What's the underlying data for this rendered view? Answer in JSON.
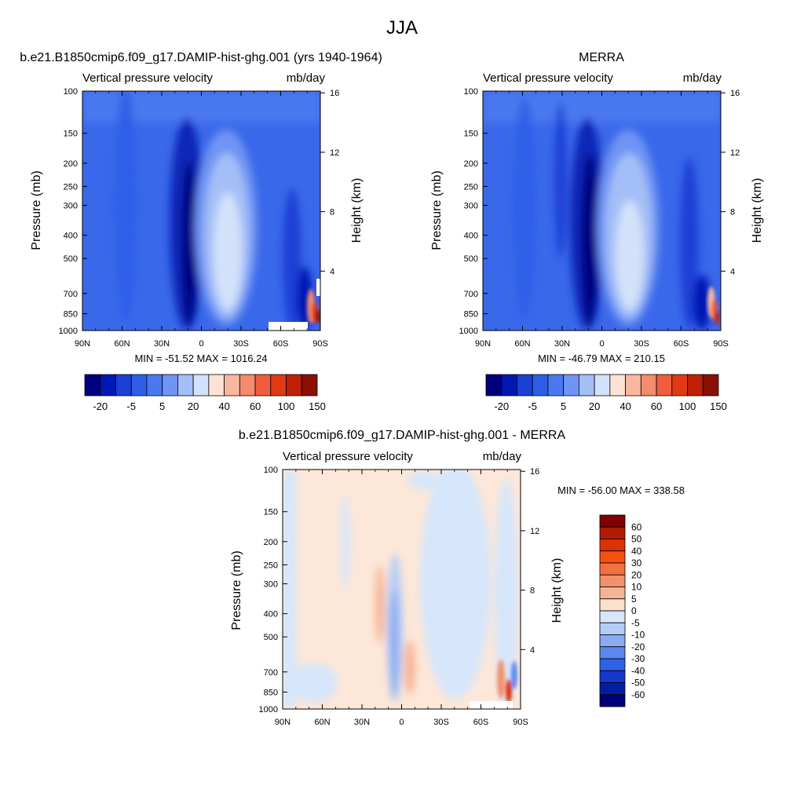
{
  "figure_title": "JJA",
  "chart_data": [
    {
      "type": "heatmap",
      "title": "b.e21.B1850cmip6.f09_g17.DAMIP-hist-ghg.001 (yrs 1940-1964)",
      "left_label": "Vertical pressure velocity",
      "right_label": "mb/day",
      "ylabel": "Pressure (mb)",
      "y2label": "Height (km)",
      "x_ticks": [
        "90N",
        "60N",
        "30N",
        "0",
        "30S",
        "60S",
        "90S"
      ],
      "y_ticks": [
        "100",
        "150",
        "200",
        "250",
        "300",
        "400",
        "500",
        "700",
        "850",
        "1000"
      ],
      "y_tick_values": [
        100,
        150,
        200,
        250,
        300,
        400,
        500,
        700,
        850,
        1000
      ],
      "y2_ticks": [
        "4",
        "8",
        "12",
        "16"
      ],
      "y2_tick_values": [
        4,
        8,
        12,
        16
      ],
      "ylim": [
        100,
        1000
      ],
      "y_scale": "log",
      "stats": "MIN = -51.52  MAX = 1016.24",
      "colorbar": {
        "orientation": "horizontal",
        "tick_labels": [
          "-20",
          "-5",
          "5",
          "20",
          "40",
          "60",
          "100",
          "150"
        ],
        "colors": [
          "#00007f",
          "#0018b4",
          "#1b40d6",
          "#2e5ee8",
          "#4a78f0",
          "#7094f4",
          "#a4bff7",
          "#d3e2fb",
          "#fde3d5",
          "#f8b8a0",
          "#f48a6e",
          "#ef5d3e",
          "#e23a14",
          "#bf2008",
          "#8a1005"
        ]
      }
    },
    {
      "type": "heatmap",
      "title": "MERRA",
      "left_label": "Vertical pressure velocity",
      "right_label": "mb/day",
      "ylabel": "Pressure (mb)",
      "y2label": "Height (km)",
      "x_ticks": [
        "90N",
        "60N",
        "30N",
        "0",
        "30S",
        "60S",
        "90S"
      ],
      "y_ticks": [
        "100",
        "150",
        "200",
        "250",
        "300",
        "400",
        "500",
        "700",
        "850",
        "1000"
      ],
      "y_tick_values": [
        100,
        150,
        200,
        250,
        300,
        400,
        500,
        700,
        850,
        1000
      ],
      "y2_ticks": [
        "4",
        "8",
        "12",
        "16"
      ],
      "y2_tick_values": [
        4,
        8,
        12,
        16
      ],
      "ylim": [
        100,
        1000
      ],
      "y_scale": "log",
      "stats": "MIN = -46.79  MAX = 210.15",
      "colorbar": {
        "orientation": "horizontal",
        "tick_labels": [
          "-20",
          "-5",
          "5",
          "20",
          "40",
          "60",
          "100",
          "150"
        ],
        "colors": [
          "#00007f",
          "#0018b4",
          "#1b40d6",
          "#2e5ee8",
          "#4a78f0",
          "#7094f4",
          "#a4bff7",
          "#d3e2fb",
          "#fde3d5",
          "#f8b8a0",
          "#f48a6e",
          "#ef5d3e",
          "#e23a14",
          "#bf2008",
          "#8a1005"
        ]
      }
    },
    {
      "type": "heatmap",
      "title": "b.e21.B1850cmip6.f09_g17.DAMIP-hist-ghg.001 - MERRA",
      "left_label": "Vertical pressure velocity",
      "right_label": "mb/day",
      "ylabel": "Pressure (mb)",
      "y2label": "Height (km)",
      "x_ticks": [
        "90N",
        "60N",
        "30N",
        "0",
        "30S",
        "60S",
        "90S"
      ],
      "y_ticks": [
        "100",
        "150",
        "200",
        "250",
        "300",
        "400",
        "500",
        "700",
        "850",
        "1000"
      ],
      "y_tick_values": [
        100,
        150,
        200,
        250,
        300,
        400,
        500,
        700,
        850,
        1000
      ],
      "y2_ticks": [
        "4",
        "8",
        "12",
        "16"
      ],
      "y2_tick_values": [
        4,
        8,
        12,
        16
      ],
      "ylim": [
        100,
        1000
      ],
      "y_scale": "log",
      "stats": "MIN = -56.00  MAX = 338.58",
      "colorbar": {
        "orientation": "vertical",
        "tick_labels": [
          "60",
          "50",
          "40",
          "30",
          "20",
          "10",
          "5",
          "0",
          "-5",
          "-10",
          "-20",
          "-30",
          "-40",
          "-50",
          "-60"
        ],
        "colors": [
          "#800000",
          "#b01c00",
          "#dc3200",
          "#f55010",
          "#f47040",
          "#f4906a",
          "#f6b496",
          "#fde0cc",
          "#d6e6fb",
          "#b4cdf7",
          "#8cacf2",
          "#5a88ee",
          "#2f60e8",
          "#1636cc",
          "#001ea0",
          "#000078"
        ]
      }
    }
  ]
}
